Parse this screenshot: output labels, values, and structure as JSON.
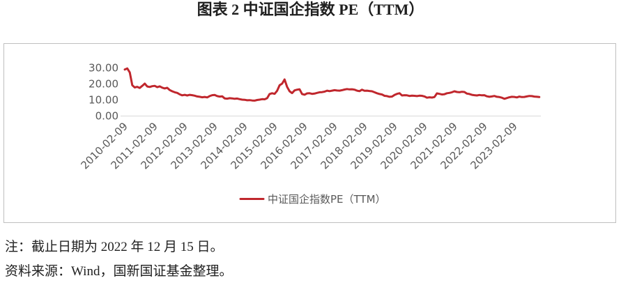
{
  "chart_data": {
    "type": "line",
    "title": "图表 2 中证国企指数 PE（TTM）",
    "ylim": [
      0,
      30
    ],
    "y_ticks": [
      30,
      20,
      10,
      0
    ],
    "y_tick_labels": [
      "30.00",
      "20.00",
      "10.00",
      "0.00"
    ],
    "x_tick_labels": [
      "2010-02-09",
      "2011-02-09",
      "2012-02-09",
      "2013-02-09",
      "2014-02-09",
      "2015-02-09",
      "2016-02-09",
      "2017-02-09",
      "2018-02-09",
      "2019-02-09",
      "2020-02-09",
      "2021-02-09",
      "2022-02-09",
      "2023-02-09"
    ],
    "grid": false,
    "legend": "bottom",
    "x": [
      "2010-02",
      "2010-03",
      "2010-04",
      "2010-05",
      "2010-06",
      "2010-07",
      "2010-08",
      "2010-09",
      "2010-10",
      "2010-11",
      "2010-12",
      "2011-01",
      "2011-02",
      "2011-03",
      "2011-04",
      "2011-05",
      "2011-06",
      "2011-07",
      "2011-08",
      "2011-09",
      "2011-10",
      "2011-11",
      "2011-12",
      "2012-01",
      "2012-02",
      "2012-03",
      "2012-04",
      "2012-05",
      "2012-06",
      "2012-07",
      "2012-08",
      "2012-09",
      "2012-10",
      "2012-11",
      "2012-12",
      "2013-01",
      "2013-02",
      "2013-03",
      "2013-04",
      "2013-05",
      "2013-06",
      "2013-07",
      "2013-08",
      "2013-09",
      "2013-10",
      "2013-11",
      "2013-12",
      "2014-01",
      "2014-02",
      "2014-03",
      "2014-04",
      "2014-05",
      "2014-06",
      "2014-07",
      "2014-08",
      "2014-09",
      "2014-10",
      "2014-11",
      "2014-12",
      "2015-01",
      "2015-02",
      "2015-03",
      "2015-04",
      "2015-05",
      "2015-06",
      "2015-07",
      "2015-08",
      "2015-09",
      "2015-10",
      "2015-11",
      "2015-12",
      "2016-01",
      "2016-02",
      "2016-03",
      "2016-04",
      "2016-05",
      "2016-06",
      "2016-07",
      "2016-08",
      "2016-09",
      "2016-10",
      "2016-11",
      "2016-12",
      "2017-01",
      "2017-02",
      "2017-03",
      "2017-04",
      "2017-05",
      "2017-06",
      "2017-07",
      "2017-08",
      "2017-09",
      "2017-10",
      "2017-11",
      "2017-12",
      "2018-01",
      "2018-02",
      "2018-03",
      "2018-04",
      "2018-05",
      "2018-06",
      "2018-07",
      "2018-08",
      "2018-09",
      "2018-10",
      "2018-11",
      "2018-12",
      "2019-01",
      "2019-02",
      "2019-03",
      "2019-04",
      "2019-05",
      "2019-06",
      "2019-07",
      "2019-08",
      "2019-09",
      "2019-10",
      "2019-11",
      "2019-12",
      "2020-01",
      "2020-02",
      "2020-03",
      "2020-04",
      "2020-05",
      "2020-06",
      "2020-07",
      "2020-08",
      "2020-09",
      "2020-10",
      "2020-11",
      "2020-12",
      "2021-01",
      "2021-02",
      "2021-03",
      "2021-04",
      "2021-05",
      "2021-06",
      "2021-07",
      "2021-08",
      "2021-09",
      "2021-10",
      "2021-11",
      "2021-12",
      "2022-01",
      "2022-02",
      "2022-03",
      "2022-04",
      "2022-05",
      "2022-06",
      "2022-07",
      "2022-08",
      "2022-09",
      "2022-10",
      "2022-11",
      "2022-12",
      "2023-01",
      "2023-02",
      "2023-03",
      "2023-04",
      "2023-05",
      "2023-06",
      "2023-07",
      "2023-08",
      "2023-09",
      "2023-10",
      "2023-11",
      "2023-12"
    ],
    "series": [
      {
        "name": "中证国企指数PE（TTM）",
        "color": "#C0272D",
        "values": [
          28.8,
          29.5,
          27.0,
          19.0,
          17.6,
          18.0,
          17.3,
          18.6,
          20.0,
          18.2,
          17.9,
          18.4,
          18.6,
          17.8,
          18.3,
          17.5,
          17.0,
          17.4,
          16.0,
          15.2,
          14.6,
          14.2,
          13.3,
          12.7,
          13.0,
          12.6,
          13.0,
          12.8,
          12.5,
          12.0,
          11.8,
          11.5,
          11.7,
          11.4,
          12.2,
          12.8,
          12.9,
          12.2,
          11.9,
          12.1,
          10.8,
          10.6,
          10.9,
          10.8,
          10.5,
          10.7,
          10.3,
          10.0,
          9.9,
          9.6,
          9.7,
          9.5,
          9.4,
          9.8,
          10.0,
          10.3,
          10.2,
          10.9,
          13.5,
          14.0,
          13.6,
          15.5,
          19.0,
          20.0,
          22.6,
          18.0,
          15.2,
          14.1,
          15.8,
          16.2,
          16.5,
          13.5,
          13.1,
          13.9,
          14.0,
          13.6,
          13.8,
          14.2,
          14.6,
          14.7,
          15.0,
          15.6,
          15.3,
          15.6,
          15.9,
          15.7,
          15.6,
          15.9,
          16.3,
          16.6,
          16.4,
          16.5,
          16.2,
          15.6,
          15.3,
          16.2,
          15.5,
          15.6,
          15.4,
          15.2,
          14.6,
          14.0,
          13.5,
          13.2,
          12.4,
          12.2,
          11.8,
          11.9,
          12.9,
          13.6,
          14.0,
          12.6,
          12.8,
          12.7,
          12.3,
          12.5,
          12.4,
          12.2,
          12.5,
          12.4,
          12.0,
          11.2,
          11.5,
          11.3,
          11.6,
          13.9,
          13.6,
          13.2,
          13.4,
          14.0,
          14.2,
          14.6,
          15.2,
          14.8,
          14.6,
          14.9,
          14.8,
          13.8,
          13.5,
          13.0,
          12.8,
          12.6,
          12.9,
          12.7,
          12.8,
          12.1,
          11.8,
          12.0,
          12.3,
          11.8,
          11.6,
          11.2,
          10.5,
          11.0,
          11.5,
          11.8,
          11.7,
          11.4,
          11.9,
          11.6,
          11.7,
          12.0,
          12.3,
          12.2,
          11.9,
          11.8,
          11.6
        ]
      }
    ]
  },
  "notes": {
    "note": "注：截止日期为 2022 年 12 月 15 日。",
    "source": "资料来源：Wind，国新国证基金整理。"
  }
}
